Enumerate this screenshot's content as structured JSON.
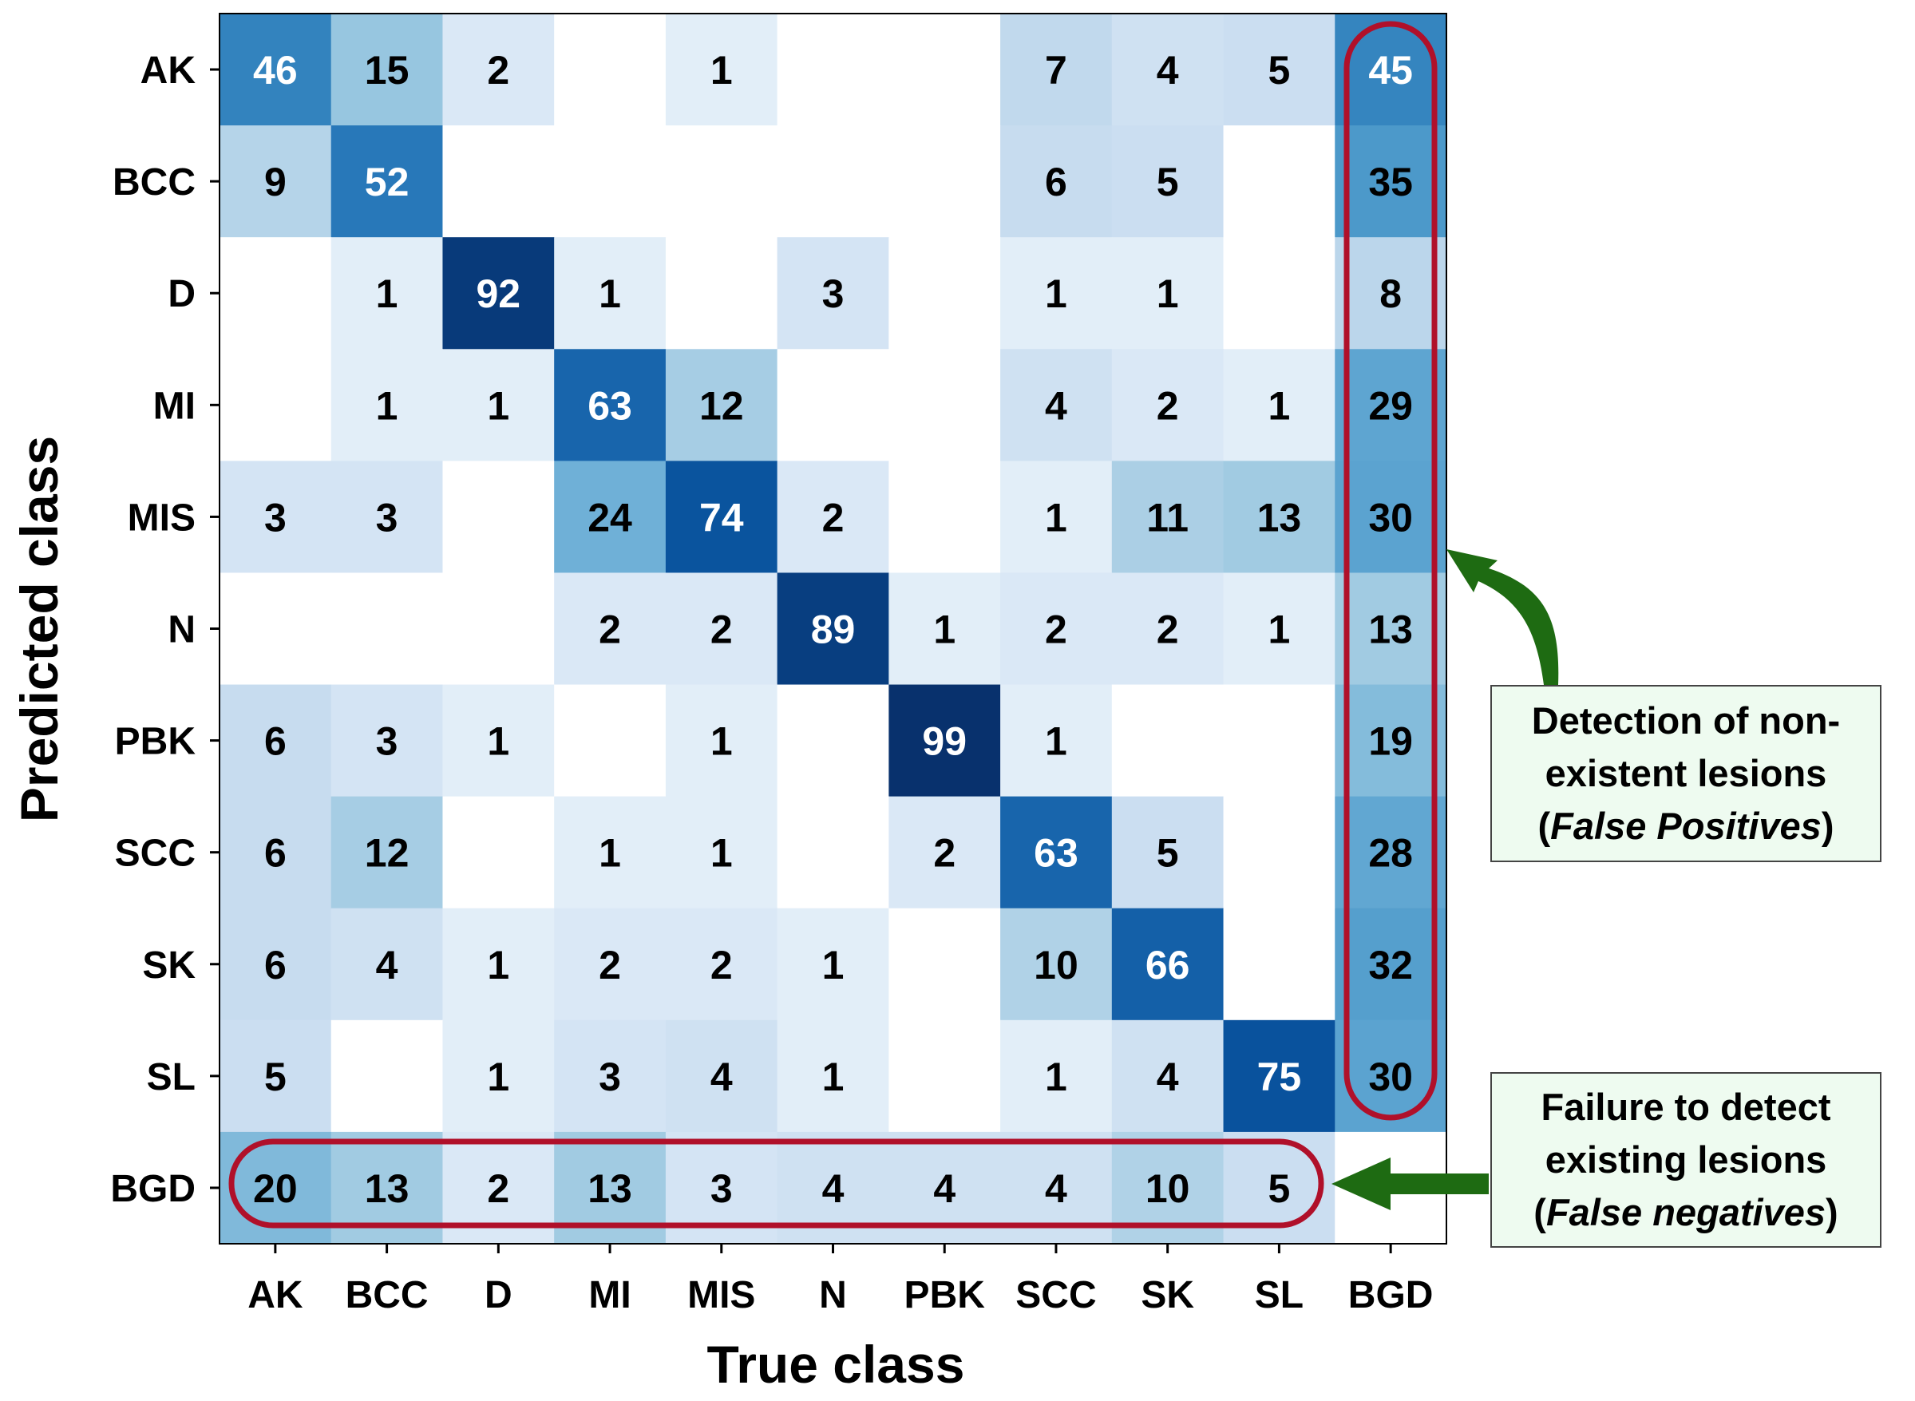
{
  "chart_data": {
    "type": "heatmap",
    "xlabel": "True class",
    "ylabel": "Predicted class",
    "x_categories": [
      "AK",
      "BCC",
      "D",
      "MI",
      "MIS",
      "N",
      "PBK",
      "SCC",
      "SK",
      "SL",
      "BGD"
    ],
    "y_categories": [
      "AK",
      "BCC",
      "D",
      "MI",
      "MIS",
      "N",
      "PBK",
      "SCC",
      "SK",
      "SL",
      "BGD"
    ],
    "values": [
      [
        46,
        15,
        2,
        null,
        1,
        null,
        null,
        7,
        4,
        5,
        45
      ],
      [
        9,
        52,
        null,
        null,
        null,
        null,
        null,
        6,
        5,
        null,
        35
      ],
      [
        null,
        1,
        92,
        1,
        null,
        3,
        null,
        1,
        1,
        null,
        8
      ],
      [
        null,
        1,
        1,
        63,
        12,
        null,
        null,
        4,
        2,
        1,
        29
      ],
      [
        3,
        3,
        null,
        24,
        74,
        2,
        null,
        1,
        11,
        13,
        30
      ],
      [
        null,
        null,
        null,
        2,
        2,
        89,
        1,
        2,
        2,
        1,
        13
      ],
      [
        6,
        3,
        1,
        null,
        1,
        null,
        99,
        1,
        null,
        null,
        19
      ],
      [
        6,
        12,
        null,
        1,
        1,
        null,
        2,
        63,
        5,
        null,
        28
      ],
      [
        6,
        4,
        1,
        2,
        2,
        1,
        null,
        10,
        66,
        null,
        32
      ],
      [
        5,
        null,
        1,
        3,
        4,
        1,
        null,
        1,
        4,
        75,
        30
      ],
      [
        20,
        13,
        2,
        13,
        3,
        4,
        4,
        4,
        10,
        5,
        null
      ]
    ],
    "colormap": "Blues",
    "value_range": [
      0,
      100
    ],
    "highlight_color": "#b0102a",
    "arrow_color": "#1e6b12"
  },
  "annotations": {
    "false_positives": {
      "line1": "Detection of non-",
      "line2": "existent lesions",
      "open": "(",
      "term": "False Positives",
      "close": ")"
    },
    "false_negatives": {
      "line1": "Failure to detect",
      "line2": "existing lesions",
      "open": "(",
      "term": "False negatives",
      "close": ")"
    }
  }
}
